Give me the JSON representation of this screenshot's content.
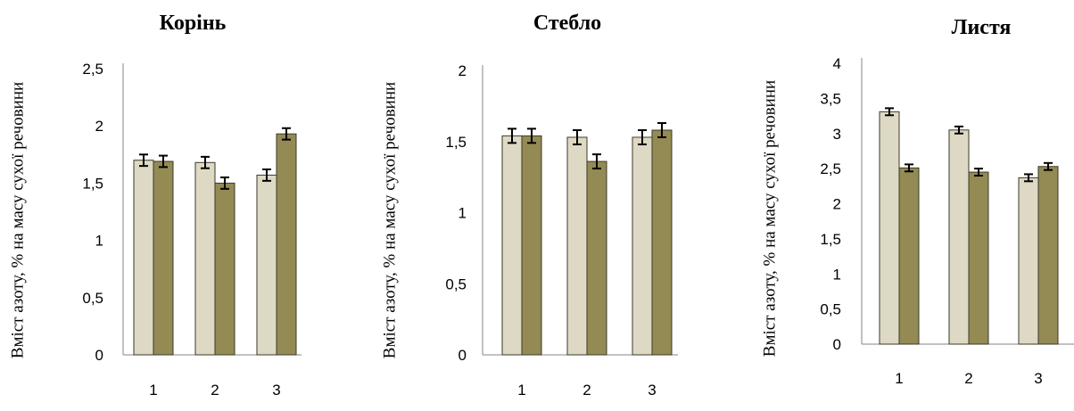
{
  "chart_data": [
    {
      "type": "bar",
      "title": "Корінь",
      "ylabel": "Вміст азоту, % на масу сухої речовини",
      "categories": [
        "1",
        "2",
        "3"
      ],
      "ylim": [
        0,
        2.5
      ],
      "yticks": [
        "0",
        "0,5",
        "1",
        "1,5",
        "2",
        "2,5"
      ],
      "series": [
        {
          "values": [
            1.7,
            1.68,
            1.57
          ],
          "errors": [
            0.05,
            0.05,
            0.05
          ],
          "color": "#DDD9C4"
        },
        {
          "values": [
            1.69,
            1.5,
            1.93
          ],
          "errors": [
            0.05,
            0.05,
            0.05
          ],
          "color": "#948A54"
        }
      ],
      "grid": false
    },
    {
      "type": "bar",
      "title": "Стебло",
      "ylabel": "Вміст азоту, % на масу сухої речовини",
      "categories": [
        "1",
        "2",
        "3"
      ],
      "ylim": [
        0,
        2
      ],
      "yticks": [
        "0",
        "0,5",
        "1",
        "1,5",
        "2"
      ],
      "series": [
        {
          "values": [
            1.54,
            1.53,
            1.53
          ],
          "errors": [
            0.05,
            0.05,
            0.05
          ],
          "color": "#DDD9C4"
        },
        {
          "values": [
            1.54,
            1.36,
            1.58
          ],
          "errors": [
            0.05,
            0.05,
            0.05
          ],
          "color": "#948A54"
        }
      ],
      "grid": false
    },
    {
      "type": "bar",
      "title": "Листя",
      "ylabel": "Вміст азоту, % на масу сухої речовини",
      "categories": [
        "1",
        "2",
        "3"
      ],
      "ylim": [
        0,
        4
      ],
      "yticks": [
        "0",
        "0,5",
        "1",
        "1,5",
        "2",
        "2,5",
        "3",
        "3,5",
        "4"
      ],
      "series": [
        {
          "values": [
            3.31,
            3.05,
            2.37
          ],
          "errors": [
            0.05,
            0.05,
            0.05
          ],
          "color": "#DDD9C4"
        },
        {
          "values": [
            2.51,
            2.45,
            2.53
          ],
          "errors": [
            0.05,
            0.05,
            0.05
          ],
          "color": "#948A54"
        }
      ],
      "grid": false
    }
  ]
}
